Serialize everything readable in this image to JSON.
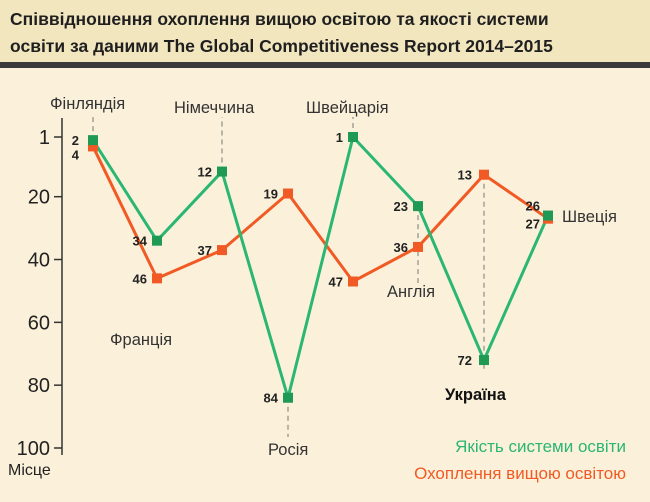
{
  "chart_data": {
    "type": "line",
    "title_line1": "Співвідношення охоплення вищою освітою та якості системи",
    "title_line2": "освіти за даними The Global  Competitiveness Report 2014–2015",
    "ylabel": "Місце",
    "ylim": [
      1,
      100
    ],
    "yticks": [
      "1",
      "20",
      "40",
      "60",
      "80",
      "100"
    ],
    "yticks_values": [
      1,
      20,
      40,
      60,
      80,
      100
    ],
    "y_inverted": true,
    "categories": [
      "Фінляндія",
      "Франція",
      "Німеччина",
      "Росія",
      "Швейцарія",
      "Англія",
      "Україна",
      "Швеція"
    ],
    "series": [
      {
        "name": "Якість системи освіти",
        "color": "#2bb673",
        "marker_color": "#1f9a55",
        "values": [
          2,
          34,
          12,
          84,
          1,
          23,
          72,
          26
        ]
      },
      {
        "name": "Охоплення вищою освітою",
        "color": "#f15a24",
        "marker_color": "#f15a24",
        "values": [
          4,
          46,
          37,
          19,
          47,
          36,
          13,
          27
        ]
      }
    ],
    "legend_placement": "bottom-right"
  }
}
